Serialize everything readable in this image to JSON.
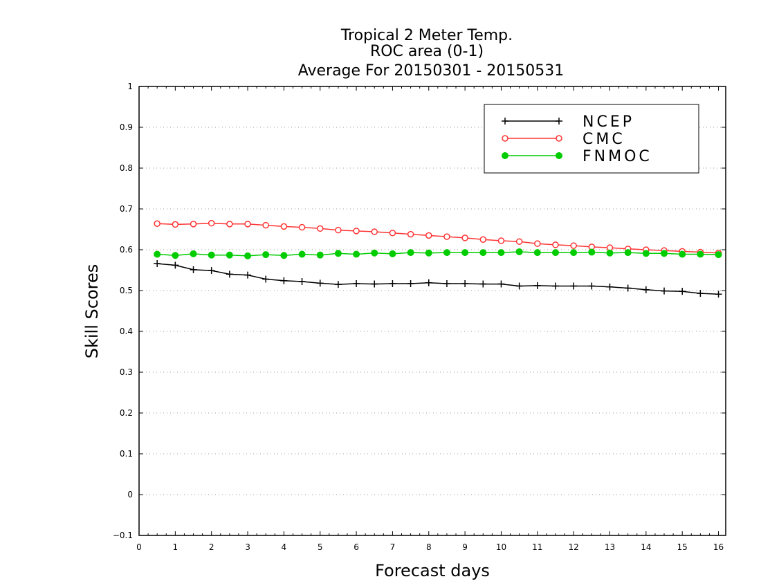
{
  "chart_data": {
    "type": "line",
    "title": [
      "Tropical 2 Meter Temp.",
      "ROC area (0-1)",
      "Average For 20150301 - 20150531"
    ],
    "xlabel": "Forecast days",
    "ylabel": "Skill Scores",
    "xlim": [
      0,
      16.2
    ],
    "ylim": [
      -0.1,
      1
    ],
    "xticks": [
      "0",
      "1",
      "2",
      "3",
      "4",
      "5",
      "6",
      "7",
      "8",
      "9",
      "10",
      "11",
      "12",
      "13",
      "14",
      "15",
      "16"
    ],
    "yticks": [
      "−0.1",
      "0",
      "0.1",
      "0.2",
      "0.3",
      "0.4",
      "0.5",
      "0.6",
      "0.7",
      "0.8",
      "0.9",
      "1"
    ],
    "grid": "horizontal dotted",
    "legend_position": "top-right",
    "x": [
      0.5,
      1,
      1.5,
      2,
      2.5,
      3,
      3.5,
      4,
      4.5,
      5,
      5.5,
      6,
      6.5,
      7,
      7.5,
      8,
      8.5,
      9,
      9.5,
      10,
      10.5,
      11,
      11.5,
      12,
      12.5,
      13,
      13.5,
      14,
      14.5,
      15,
      15.5,
      16
    ],
    "series": [
      {
        "name": "NCEP",
        "color": "#000000",
        "marker": "plus",
        "values": [
          0.566,
          0.562,
          0.551,
          0.549,
          0.54,
          0.538,
          0.528,
          0.524,
          0.522,
          0.518,
          0.515,
          0.517,
          0.516,
          0.517,
          0.517,
          0.519,
          0.517,
          0.517,
          0.516,
          0.516,
          0.511,
          0.512,
          0.511,
          0.511,
          0.511,
          0.509,
          0.506,
          0.502,
          0.499,
          0.498,
          0.493,
          0.491
        ]
      },
      {
        "name": "CMC",
        "color": "#ff3333",
        "marker": "open-circle",
        "values": [
          0.664,
          0.662,
          0.663,
          0.665,
          0.663,
          0.663,
          0.66,
          0.657,
          0.655,
          0.652,
          0.648,
          0.646,
          0.644,
          0.641,
          0.638,
          0.635,
          0.632,
          0.629,
          0.625,
          0.622,
          0.62,
          0.615,
          0.612,
          0.61,
          0.607,
          0.605,
          0.602,
          0.6,
          0.598,
          0.596,
          0.594,
          0.592
        ]
      },
      {
        "name": "FNMOC",
        "color": "#00cc00",
        "marker": "filled-circle",
        "values": [
          0.589,
          0.586,
          0.59,
          0.587,
          0.587,
          0.585,
          0.588,
          0.586,
          0.589,
          0.587,
          0.591,
          0.589,
          0.592,
          0.59,
          0.593,
          0.592,
          0.593,
          0.593,
          0.593,
          0.593,
          0.595,
          0.593,
          0.593,
          0.593,
          0.594,
          0.592,
          0.593,
          0.591,
          0.591,
          0.589,
          0.589,
          0.588
        ]
      }
    ]
  }
}
